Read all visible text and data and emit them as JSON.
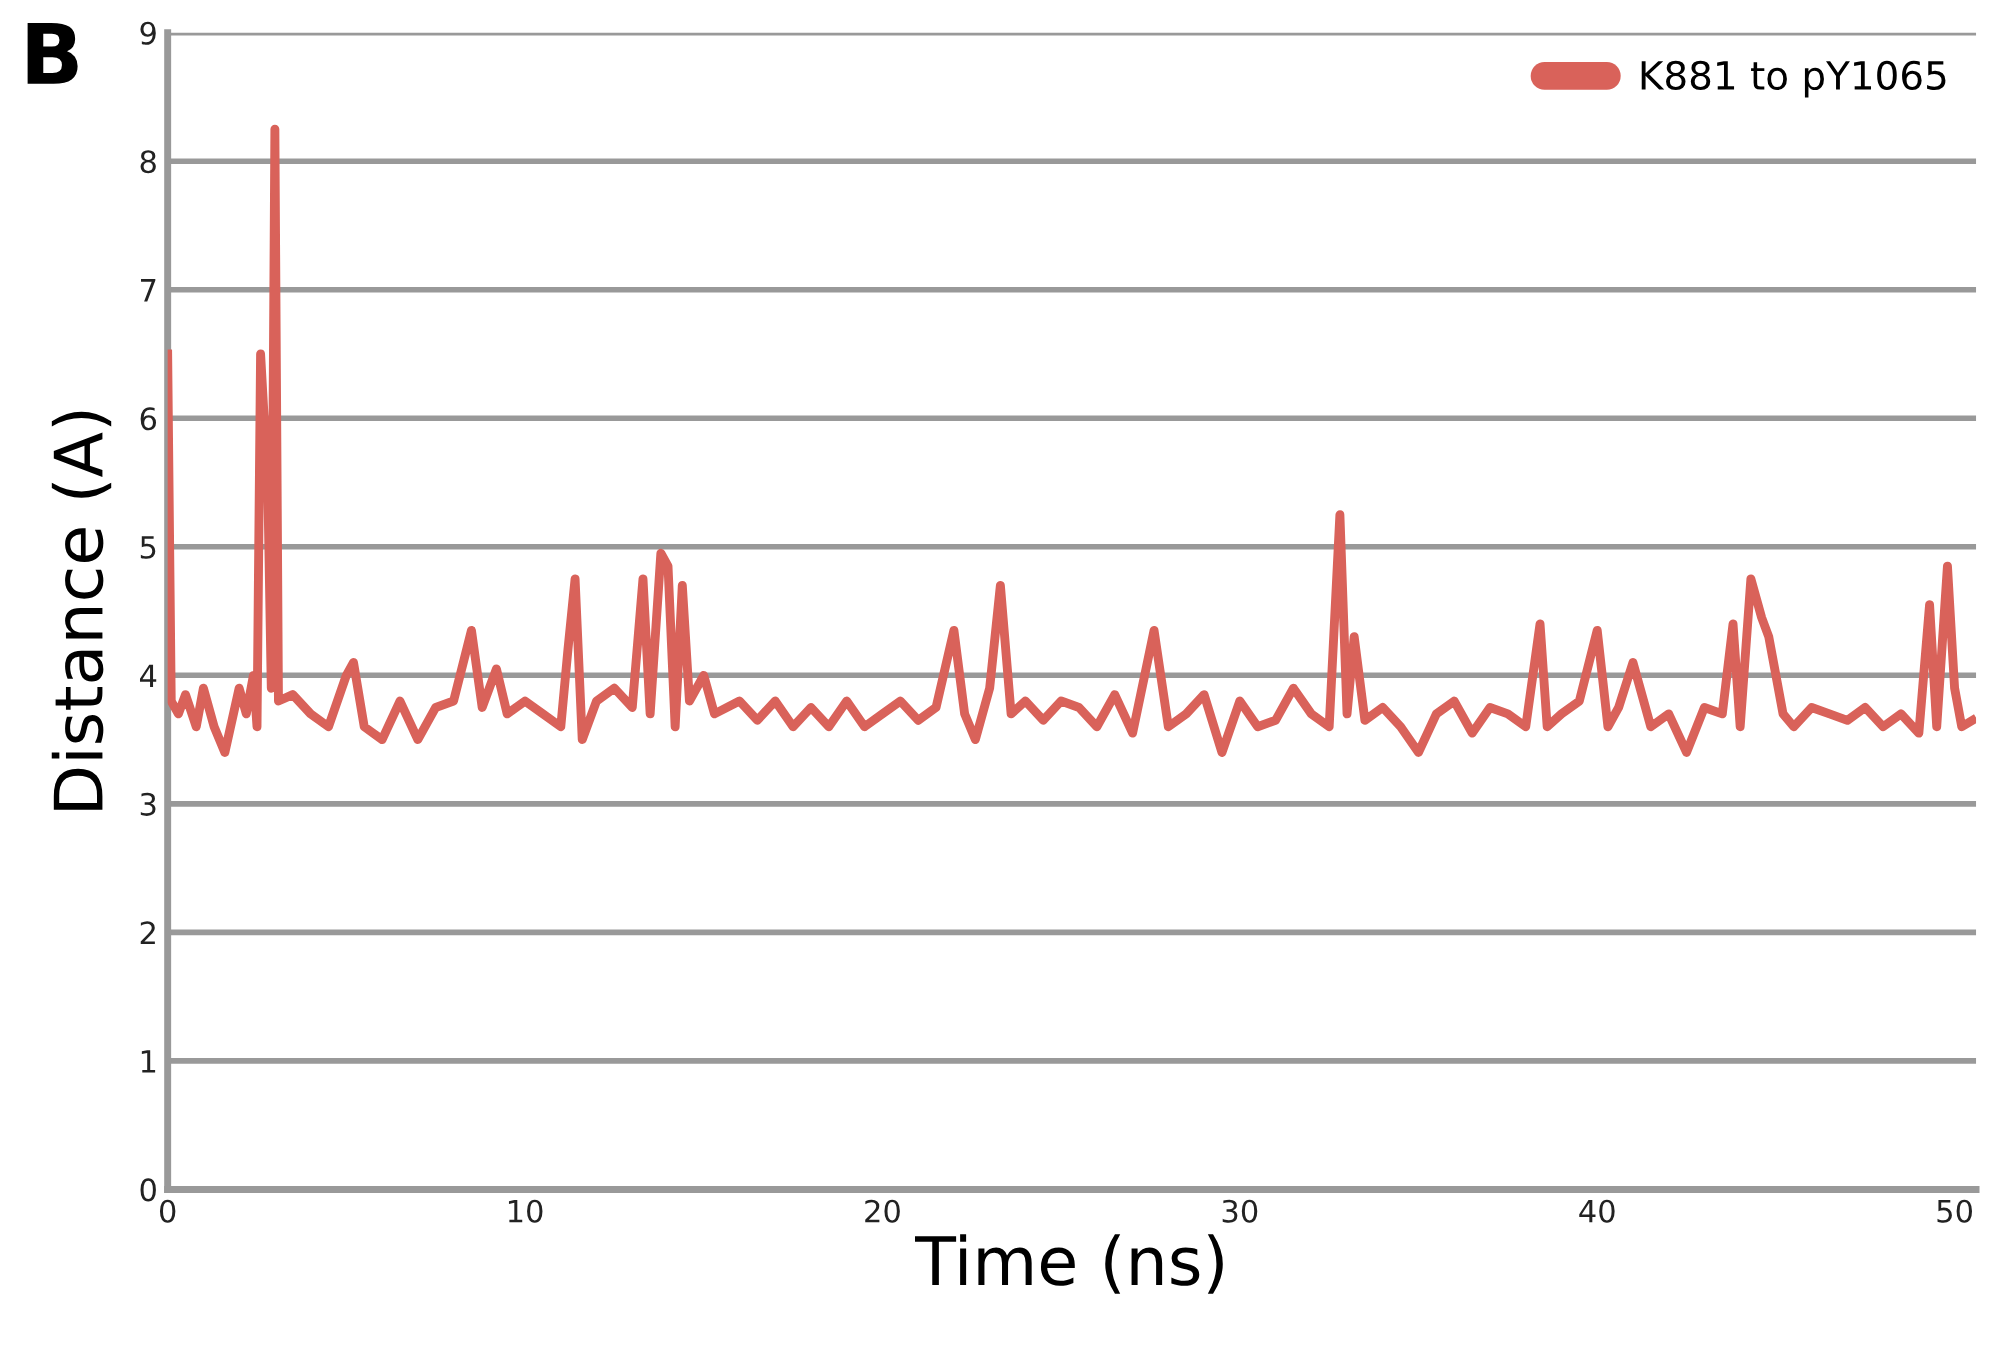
{
  "chart_data": {
    "type": "line",
    "xlabel": "Time (ns)",
    "ylabel": "Distance (A)",
    "annotations": [
      "B"
    ],
    "xlim": [
      0,
      50.6
    ],
    "xticks": [
      0,
      10,
      20,
      30,
      40,
      50
    ],
    "ylim": [
      0,
      9
    ],
    "yticks": [
      0,
      1,
      2,
      3,
      4,
      5,
      6,
      7,
      8,
      9
    ],
    "grid": "y",
    "legend": "top right",
    "marker": "none",
    "line_style": "solid",
    "series": [
      {
        "name": "K881 to pY1065",
        "color": "#d9625a",
        "x": [
          0,
          0.1,
          0.3,
          0.5,
          0.8,
          1,
          1.3,
          1.6,
          2,
          2.2,
          2.4,
          2.5,
          2.6,
          2.8,
          2.9,
          3.0,
          3.1,
          3.5,
          4,
          4.5,
          5,
          5.2,
          5.5,
          6,
          6.5,
          7,
          7.5,
          8,
          8.5,
          8.8,
          9.2,
          9.5,
          10,
          10.5,
          11,
          11.2,
          11.4,
          11.6,
          12,
          12.5,
          13,
          13.3,
          13.5,
          13.8,
          14.0,
          14.2,
          14.4,
          14.6,
          15,
          15.3,
          16,
          16.5,
          17,
          17.5,
          18,
          18.5,
          19,
          19.5,
          20,
          20.5,
          21,
          21.5,
          22,
          22.3,
          22.6,
          23,
          23.3,
          23.6,
          24,
          24.5,
          25,
          25.5,
          26,
          26.5,
          27,
          27.6,
          28,
          28.5,
          29,
          29.5,
          30,
          30.5,
          31,
          31.5,
          32,
          32.5,
          32.8,
          33.0,
          33.2,
          33.5,
          34,
          34.5,
          35,
          35.5,
          36,
          36.5,
          37,
          37.5,
          38,
          38.4,
          38.6,
          39,
          39.5,
          40,
          40.3,
          40.6,
          41,
          41.5,
          42,
          42.5,
          43,
          43.5,
          43.8,
          44,
          44.3,
          44.6,
          44.8,
          45.2,
          45.5,
          46,
          46.5,
          47,
          47.5,
          48,
          48.5,
          49,
          49.3,
          49.5,
          49.8,
          50,
          50.2,
          50.5
        ],
        "values": [
          6.5,
          3.8,
          3.7,
          3.85,
          3.6,
          3.9,
          3.6,
          3.4,
          3.9,
          3.7,
          4.0,
          3.6,
          6.5,
          5.5,
          3.9,
          8.25,
          3.8,
          3.85,
          3.7,
          3.6,
          4.0,
          4.1,
          3.6,
          3.5,
          3.8,
          3.5,
          3.75,
          3.8,
          4.35,
          3.75,
          4.05,
          3.7,
          3.8,
          3.7,
          3.6,
          4.2,
          4.75,
          3.5,
          3.8,
          3.9,
          3.75,
          4.75,
          3.7,
          4.95,
          4.85,
          3.6,
          4.7,
          3.8,
          4.0,
          3.7,
          3.8,
          3.65,
          3.8,
          3.6,
          3.75,
          3.6,
          3.8,
          3.6,
          3.7,
          3.8,
          3.65,
          3.75,
          4.35,
          3.7,
          3.5,
          3.9,
          4.7,
          3.7,
          3.8,
          3.65,
          3.8,
          3.75,
          3.6,
          3.85,
          3.55,
          4.35,
          3.6,
          3.7,
          3.85,
          3.4,
          3.8,
          3.6,
          3.65,
          3.9,
          3.7,
          3.6,
          5.25,
          3.7,
          4.3,
          3.65,
          3.75,
          3.6,
          3.4,
          3.7,
          3.8,
          3.55,
          3.75,
          3.7,
          3.6,
          4.4,
          3.6,
          3.7,
          3.8,
          4.35,
          3.6,
          3.75,
          4.1,
          3.6,
          3.7,
          3.4,
          3.75,
          3.7,
          4.4,
          3.6,
          4.75,
          4.45,
          4.3,
          3.7,
          3.6,
          3.75,
          3.7,
          3.65,
          3.75,
          3.6,
          3.7,
          3.55,
          4.55,
          3.6,
          4.85,
          3.9,
          3.6,
          3.65
        ]
      }
    ]
  }
}
